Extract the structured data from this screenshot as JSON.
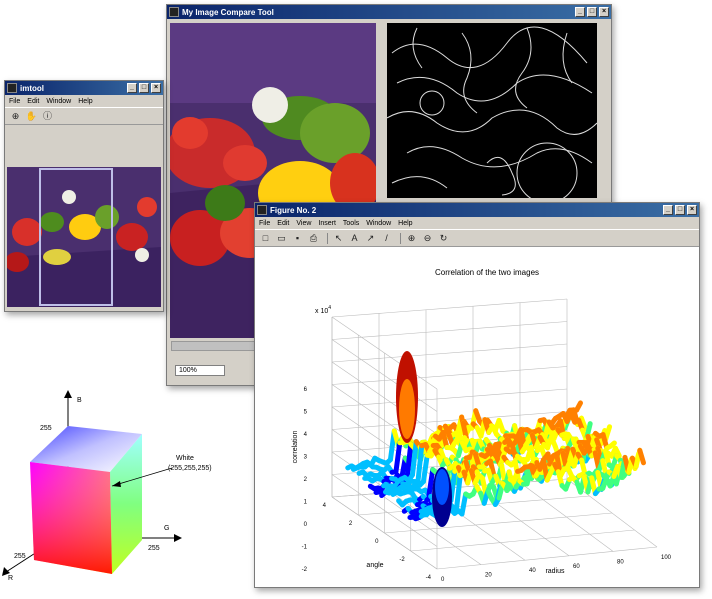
{
  "image_tool": {
    "title": "My Image Compare Tool",
    "zoom_value": "100%"
  },
  "image_tile": {
    "title": "imtool",
    "menu": [
      "File",
      "Edit",
      "Window",
      "Help"
    ]
  },
  "figure": {
    "title": "Figure No. 2",
    "menu": [
      "File",
      "Edit",
      "View",
      "Insert",
      "Tools",
      "Window",
      "Help"
    ],
    "toolbar_icons": [
      "new-icon",
      "open-icon",
      "save-icon",
      "print-icon",
      "arrow-icon",
      "text-icon",
      "arrow-insert-icon",
      "line-icon",
      "zoom-in-icon",
      "zoom-out-icon",
      "rotate-icon"
    ]
  },
  "chart_data": {
    "type": "surface",
    "title": "Correlation of the two images",
    "zlabel": "correlation",
    "xlabel": "radius",
    "ylabel": "angle",
    "z_exponent_label": "x 10",
    "z_exponent": "4",
    "z_ticks": [
      "6",
      "5",
      "4",
      "3",
      "2",
      "1",
      "0",
      "-1",
      "-2"
    ],
    "x_ticks": [
      "0",
      "20",
      "40",
      "60",
      "80",
      "100"
    ],
    "y_ticks": [
      "4",
      "2",
      "0",
      "-2",
      "-4"
    ],
    "colormap": [
      "#00008f",
      "#0000ff",
      "#00bfff",
      "#40ff80",
      "#ffff00",
      "#ff8000",
      "#b00000"
    ]
  },
  "rgb_cube": {
    "axis_b": "B",
    "axis_g": "G",
    "axis_r": "R",
    "white_label": "White",
    "white_value": "(255,255,255)",
    "tick_b": "255",
    "tick_g": "255",
    "tick_r": "255"
  }
}
